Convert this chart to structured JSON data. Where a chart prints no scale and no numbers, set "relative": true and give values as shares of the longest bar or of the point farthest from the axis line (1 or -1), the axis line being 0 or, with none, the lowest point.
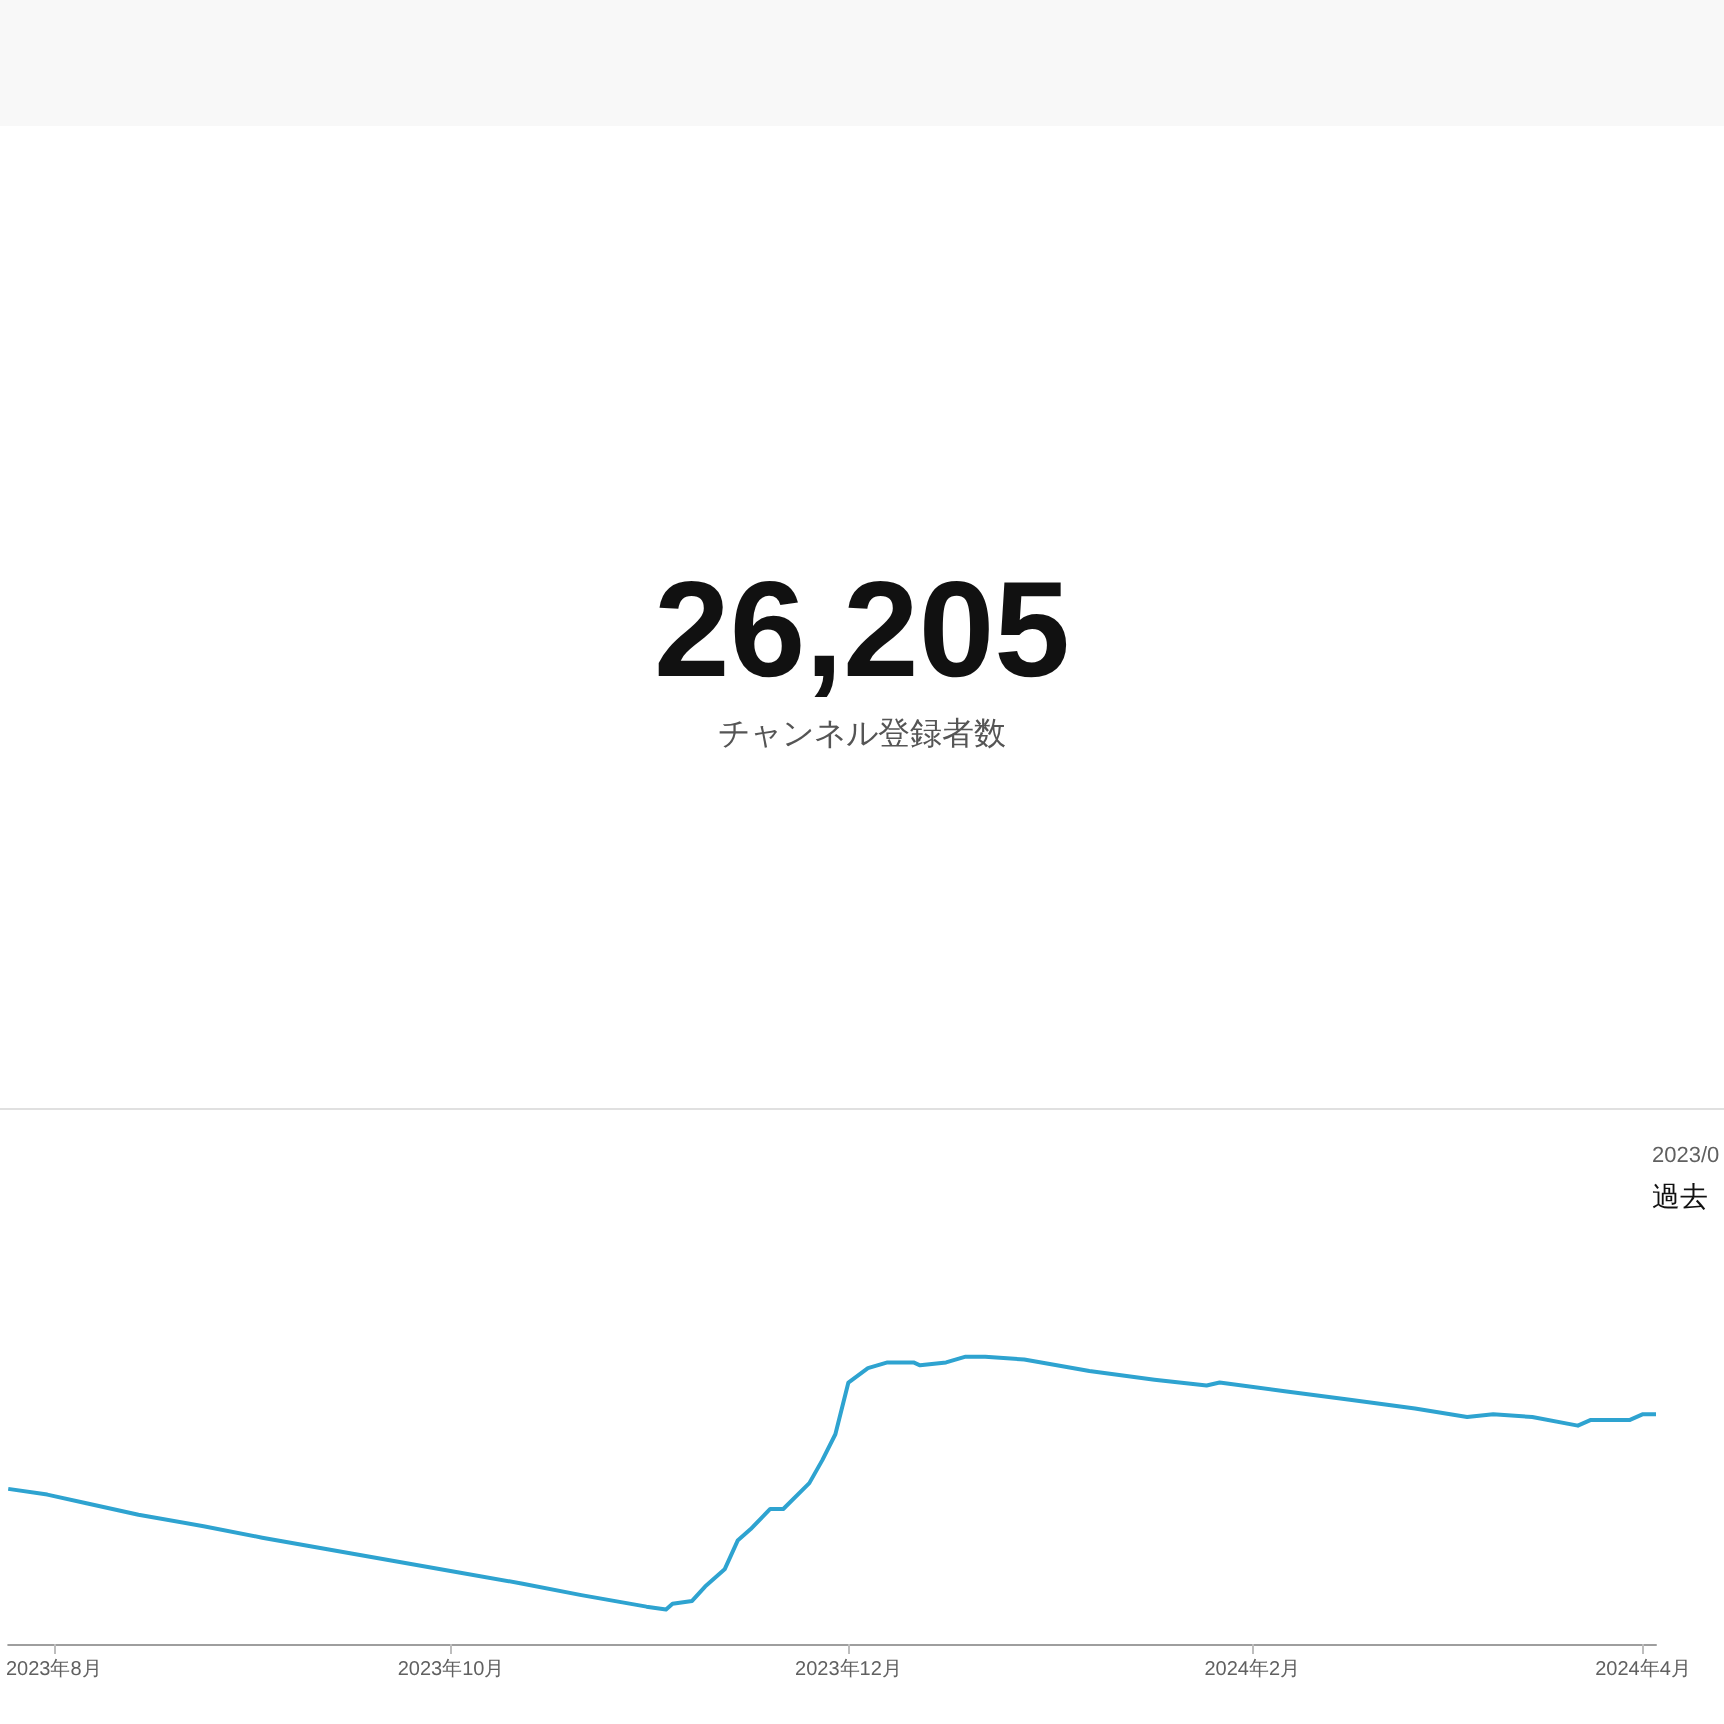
{
  "chart_data": {
    "type": "line",
    "title": "26,205",
    "subtitle": "チャンネル登録者数",
    "annotations": [
      "2023/0",
      "過去"
    ],
    "relative": true,
    "marker": "none",
    "x": [
      "2023-07-25",
      "2023-07-31",
      "2023-08-06",
      "2023-08-14",
      "2023-08-24",
      "2023-09-02",
      "2023-09-12",
      "2023-09-22",
      "2023-10-02",
      "2023-10-12",
      "2023-10-21",
      "2023-10-31",
      "2023-11-03",
      "2023-11-04",
      "2023-11-07",
      "2023-11-09",
      "2023-11-12",
      "2023-11-14",
      "2023-11-16",
      "2023-11-19",
      "2023-11-21",
      "2023-11-25",
      "2023-11-27",
      "2023-11-29",
      "2023-12-01",
      "2023-12-04",
      "2023-12-07",
      "2023-12-11",
      "2023-12-12",
      "2023-12-16",
      "2023-12-19",
      "2023-12-22",
      "2023-12-28",
      "2024-01-07",
      "2024-01-17",
      "2024-01-25",
      "2024-01-27",
      "2024-02-06",
      "2024-02-16",
      "2024-02-26",
      "2024-03-05",
      "2024-03-09",
      "2024-03-15",
      "2024-03-22",
      "2024-03-24",
      "2024-03-30",
      "2024-04-01",
      "2024-04-03"
    ],
    "series": [
      {
        "color": "#2ea3d0",
        "values": [
          0.54,
          0.52,
          0.49,
          0.45,
          0.41,
          0.37,
          0.33,
          0.29,
          0.25,
          0.21,
          0.17,
          0.13,
          0.12,
          0.14,
          0.15,
          0.2,
          0.26,
          0.36,
          0.4,
          0.47,
          0.47,
          0.56,
          0.64,
          0.73,
          0.91,
          0.96,
          0.98,
          0.98,
          0.97,
          0.98,
          1,
          1,
          0.99,
          0.95,
          0.92,
          0.9,
          0.91,
          0.88,
          0.85,
          0.82,
          0.79,
          0.8,
          0.79,
          0.76,
          0.78,
          0.78,
          0.8,
          0.8
        ]
      }
    ],
    "xlim": [
      "2023-07-25",
      "2024-04-03"
    ],
    "xticks": [
      {
        "value": "2023-08-01",
        "label": "2023年8月"
      },
      {
        "value": "2023-10-01",
        "label": "2023年10月"
      },
      {
        "value": "2023-12-01",
        "label": "2023年12月"
      },
      {
        "value": "2024-02-01",
        "label": "2024年2月"
      },
      {
        "value": "2024-04-01",
        "label": "2024年4月"
      }
    ]
  }
}
